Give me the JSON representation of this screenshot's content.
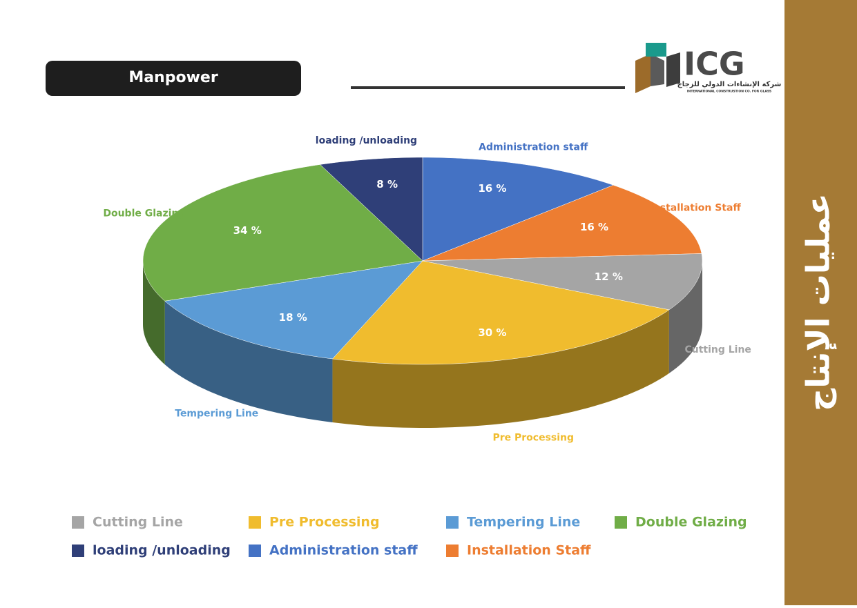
{
  "chart_data": {
    "type": "pie3d",
    "title": "Manpower",
    "categories": [
      "Cutting Line",
      "Pre Processing",
      "Tempering Line",
      "Double Glazing",
      "loading /unloading",
      "Administration staff",
      "Installation Staff"
    ],
    "values": [
      12,
      30,
      18,
      34,
      8,
      16,
      16
    ],
    "value_labels": [
      "12 %",
      "30 %",
      "18 %",
      "34 %",
      "8 %",
      "16 %",
      "16 %"
    ],
    "colors": [
      "#a5a5a5",
      "#f0bc2e",
      "#5b9bd5",
      "#70ad47",
      "#2f3f78",
      "#4472c4",
      "#ed7d31"
    ],
    "legend": "bottom"
  },
  "logo": {
    "mark": "ICG",
    "arabic_name": "شركة الإنشاءات الدولي للزجاج",
    "english_name": "INTERNATIONAL CONSTRUSTION CO. FOR GLASS"
  },
  "sidebar_title": "عمليات الإنتاج"
}
